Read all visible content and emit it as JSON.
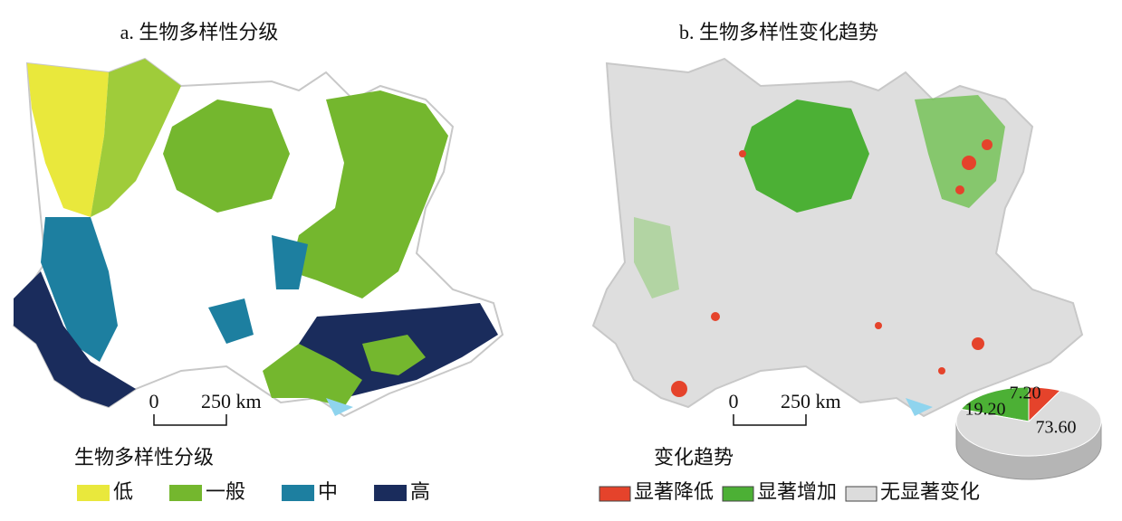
{
  "maps": [
    {
      "title": "a. 生物多样性分级",
      "scale_bar": {
        "start": "0",
        "end": "250 km"
      },
      "legend": {
        "title": "生物多样性分级",
        "items": [
          {
            "label": "低",
            "color": "#e9e83c"
          },
          {
            "label": "一般",
            "color": "#74b72e"
          },
          {
            "label": "中",
            "color": "#1d7fa0"
          },
          {
            "label": "高",
            "color": "#1a2c5c"
          }
        ]
      }
    },
    {
      "title": "b. 生物多样性变化趋势",
      "scale_bar": {
        "start": "0",
        "end": "250 km"
      },
      "legend": {
        "title": "变化趋势"
      }
    }
  ],
  "chart_data": {
    "type": "pie",
    "categories": [
      "显著降低",
      "显著增加",
      "无显著变化"
    ],
    "colors": [
      "#e5432b",
      "#4cb035",
      "#dcdcdc"
    ],
    "values": [
      7.2,
      19.2,
      73.6
    ],
    "value_labels": [
      "7.20",
      "19.20",
      "73.60"
    ]
  }
}
